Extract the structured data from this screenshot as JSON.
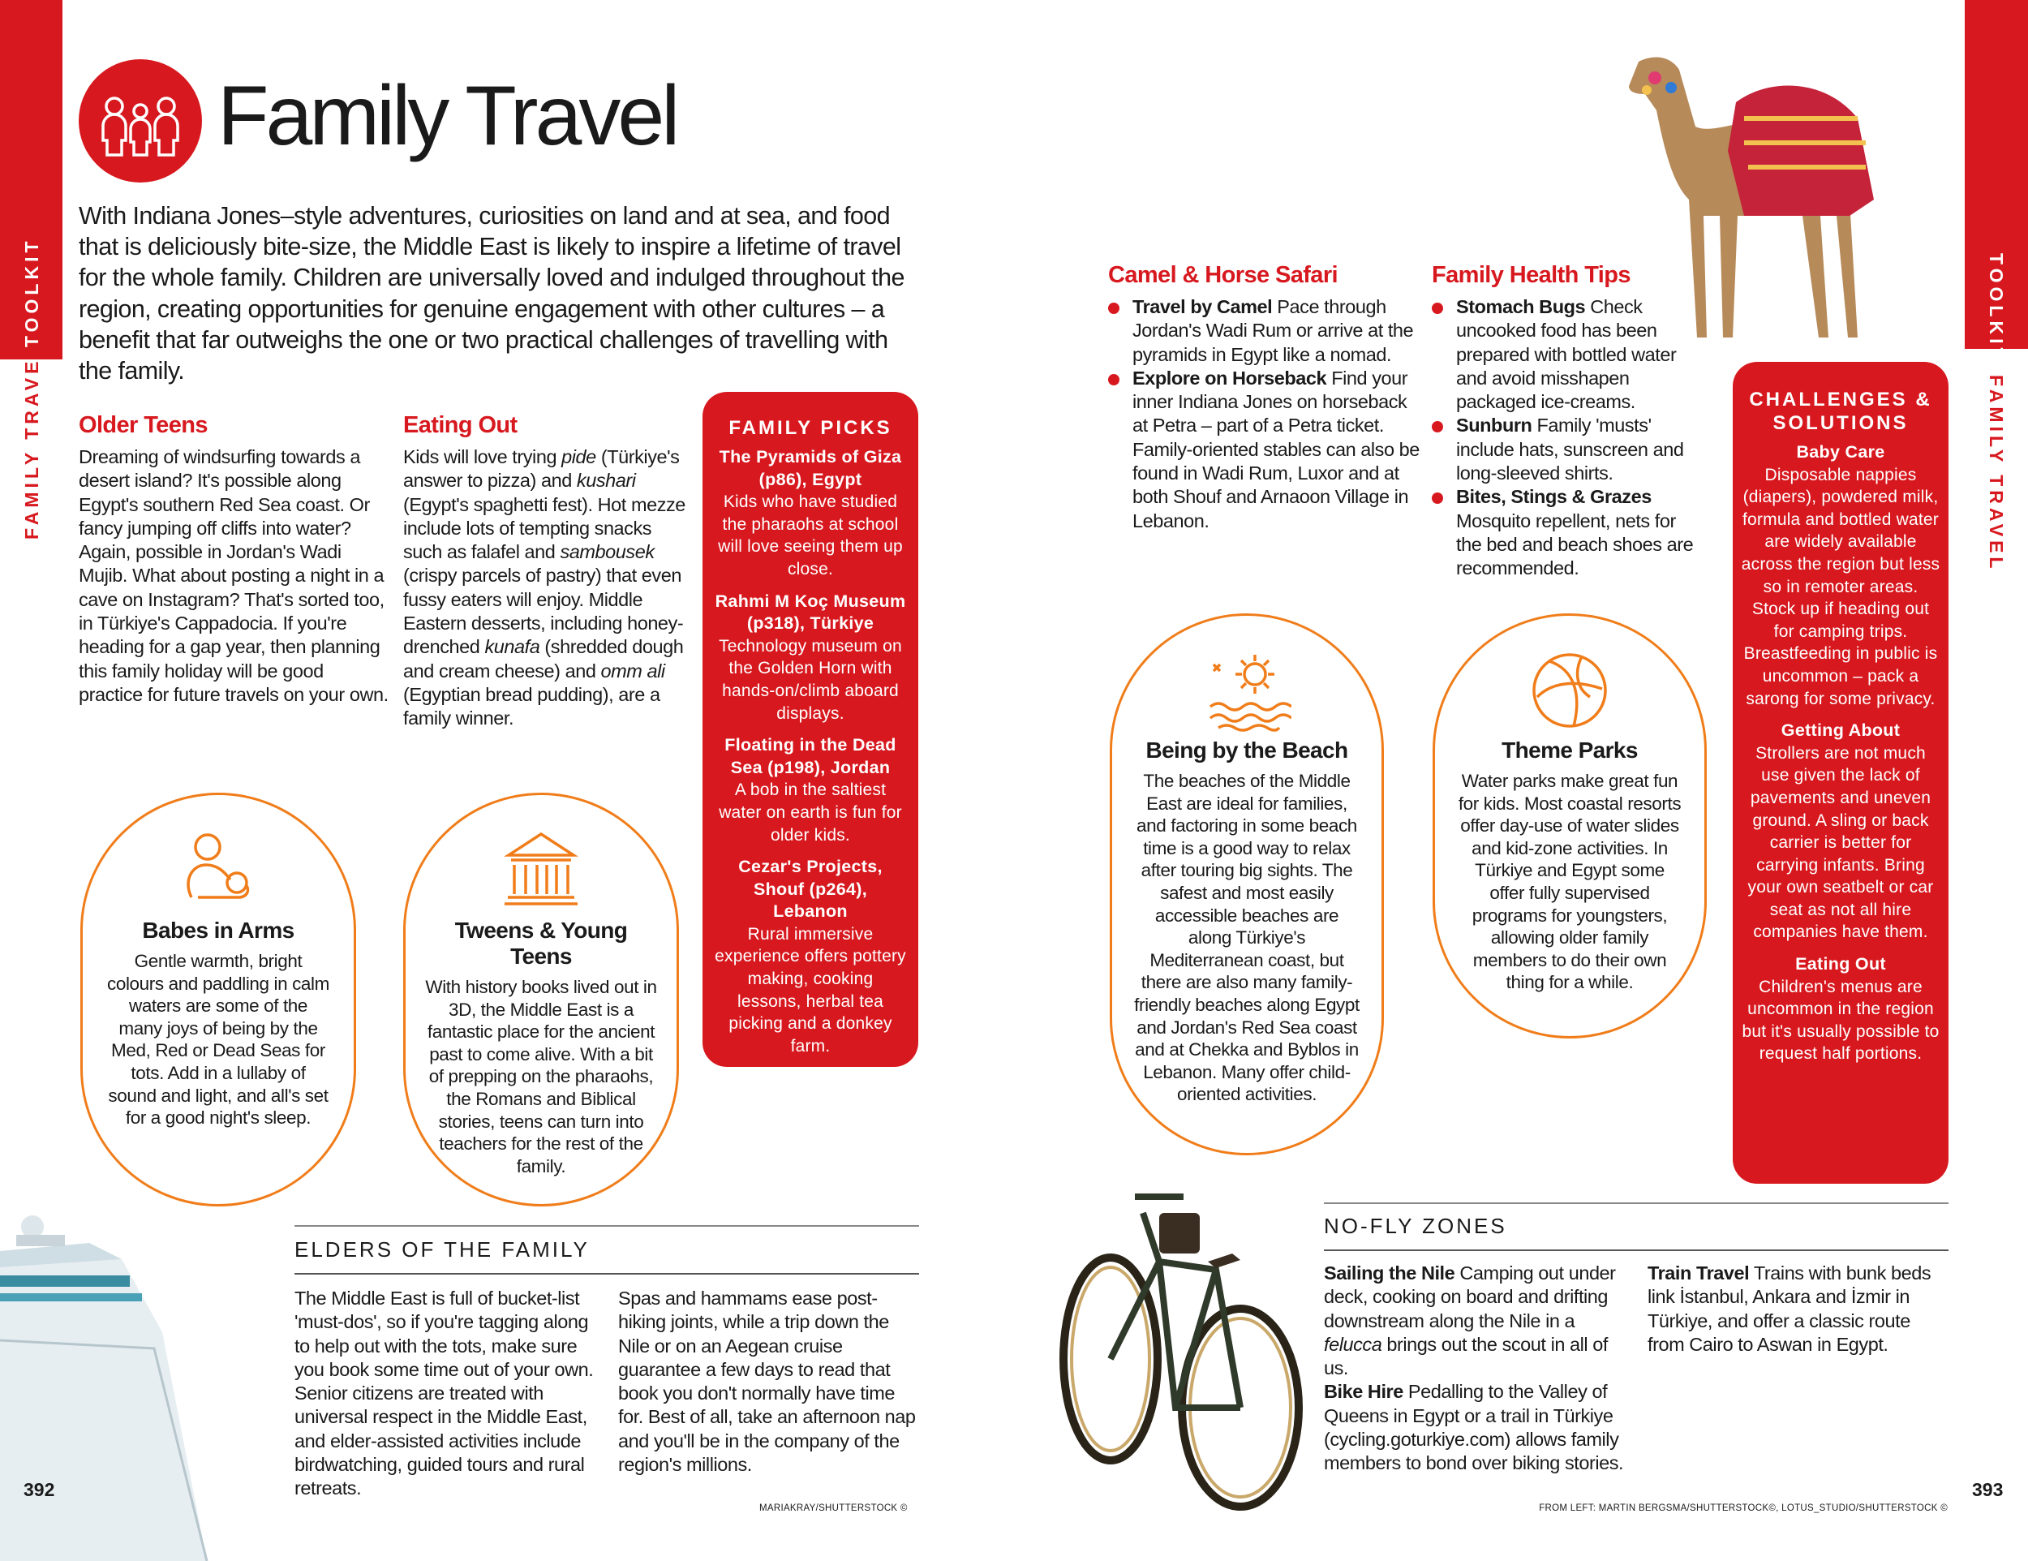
{
  "colors": {
    "brand_red": "#d7191f",
    "accent_orange": "#f07d1a"
  },
  "side_tabs": {
    "section": "TOOLKIT",
    "chapter": "FAMILY TRAVEL"
  },
  "header": {
    "icon": "family-icon",
    "title": "Family Travel"
  },
  "intro": "With Indiana Jones–style adventures, curiosities on land and at sea, and food that is deliciously bite-size, the Middle East is likely to inspire a lifetime of travel for the whole family. Children are universally loved and indulged throughout the region, creating opportunities for genuine engagement with other cultures – a benefit that far outweighs the one or two practical challenges of travelling with the family.",
  "older_teens": {
    "heading": "Older Teens",
    "text": "Dreaming of windsurfing towards a desert island? It's possible along Egypt's southern Red Sea coast. Or fancy jumping off cliffs into water? Again, possible in Jordan's Wadi Mujib. What about posting a night in a cave on Instagram? That's sorted too, in Türkiye's Cappadocia. If you're heading for a gap year, then planning this family holiday will be good practice for future travels on your own."
  },
  "eating_out": {
    "heading": "Eating Out",
    "segments": [
      "Kids will love trying ",
      "pide",
      " (Türkiye's answer to pizza) and ",
      "kushari",
      " (Egypt's spaghetti fest). Hot mezze include lots of tempting snacks such as falafel and ",
      "sambousek",
      " (crispy parcels of pastry) that even fussy eaters will enjoy. Middle Eastern desserts, including honey-drenched ",
      "kunafa",
      " (shredded dough and cream cheese) and ",
      "omm ali",
      " (Egyptian bread pudding), are a family winner."
    ]
  },
  "family_picks": {
    "heading": "FAMILY PICKS",
    "items": [
      {
        "title": "The Pyramids of Giza (p86), Egypt",
        "text": "Kids who have studied the pharaohs at school will love seeing them up close."
      },
      {
        "title": "Rahmi M Koç Museum (p318), Türkiye",
        "text": "Technology museum on the Golden Horn with hands-on/climb aboard displays."
      },
      {
        "title": "Floating in the Dead Sea (p198), Jordan",
        "text": "A bob in the saltiest water on earth is fun for older kids."
      },
      {
        "title": "Cezar's Projects, Shouf (p264), Lebanon",
        "text": "Rural immersive experience offers pottery making, cooking lessons, herbal tea picking and a donkey farm."
      }
    ]
  },
  "babes_in_arms": {
    "icon": "baby-icon",
    "heading": "Babes in Arms",
    "text": "Gentle warmth, bright colours and paddling in calm waters are some of the many joys of being by the Med, Red or Dead Seas for tots. Add in a lullaby of sound and light, and all's set for a good night's sleep."
  },
  "tweens": {
    "icon": "temple-icon",
    "heading": "Tweens & Young Teens",
    "text": "With history books lived out in 3D, the Middle East is a fantastic place for the ancient past to come alive. With a bit of prepping on the pharaohs, the Romans and Biblical stories, teens can turn into teachers for the rest of the family."
  },
  "elders": {
    "heading": "ELDERS OF THE FAMILY",
    "col1": "The Middle East is full of bucket-list 'must-dos', so if you're tagging along to help out with the tots, make sure you book some time out of your own. Senior citizens are treated with universal respect in the Middle East, and elder-assisted activities include birdwatching, guided tours and rural retreats.",
    "col2": "Spas and hammams ease post-hiking joints, while a trip down the Nile or on an Aegean cruise guarantee a few days to read that book you don't normally have time for. Best of all, take an afternoon nap and you'll be in the company of the region's millions."
  },
  "camel_safari": {
    "heading": "Camel & Horse Safari",
    "items": [
      {
        "lead": "Travel by Camel",
        "text": " Pace through Jordan's Wadi Rum or arrive at the pyramids in Egypt like a nomad."
      },
      {
        "lead": "Explore on Horseback",
        "text": " Find your inner Indiana Jones on horseback at Petra – part of a Petra ticket. Family-oriented stables can also be found in Wadi Rum, Luxor and at both Shouf and Arnaoon Village in Lebanon."
      }
    ]
  },
  "health_tips": {
    "heading": "Family Health Tips",
    "items": [
      {
        "lead": "Stomach Bugs",
        "text": " Check uncooked food has been prepared with bottled water and avoid misshapen packaged ice-creams."
      },
      {
        "lead": "Sunburn",
        "text": " Family 'musts' include hats, sunscreen and long-sleeved shirts."
      },
      {
        "lead": "Bites, Stings & Grazes",
        "text": " Mosquito repellent, nets for the bed and beach shoes are recommended."
      }
    ]
  },
  "beach": {
    "icon": "sun-waves-icon",
    "heading": "Being by the Beach",
    "text": "The beaches of the Middle East are ideal for families, and factoring in some beach time is a good way to relax after touring big sights. The safest and most easily accessible beaches are along Türkiye's Mediterranean coast, but there are also many family-friendly beaches along Egypt and Jordan's Red Sea coast and at Chekka and Byblos in Lebanon. Many offer child-oriented activities."
  },
  "theme_parks": {
    "icon": "beach-ball-icon",
    "heading": "Theme Parks",
    "text": "Water parks make great fun for kids. Most coastal resorts offer day-use of water slides and kid-zone activities. In Türkiye and Egypt some offer fully supervised programs for youngsters, allowing older family members to do their own thing for a while."
  },
  "challenges": {
    "heading": "CHALLENGES & SOLUTIONS",
    "items": [
      {
        "title": "Baby Care",
        "text": "Disposable nappies (diapers), powdered milk, formula and bottled water are widely available across the region but less so in remoter areas. Stock up if heading out for camping trips. Breastfeeding in public is uncommon – pack a sarong for some privacy."
      },
      {
        "title": "Getting About",
        "text": "Strollers are not much use given the lack of pavements and uneven ground. A sling or back carrier is better for carrying infants. Bring your own seatbelt or car seat as not all hire companies have them."
      },
      {
        "title": "Eating Out",
        "text": "Children's menus are uncommon in the region but it's usually possible to request half portions."
      }
    ]
  },
  "no_fly": {
    "heading": "NO-FLY ZONES",
    "sailing": {
      "lead": "Sailing the Nile",
      "pre": " Camping out under deck, cooking on board and drifting downstream along the Nile in a ",
      "ital": "felucca",
      "post": " brings out the scout in all of us."
    },
    "bike": {
      "lead": "Bike Hire",
      "text": " Pedalling to the Valley of Queens in Egypt or a trail in Türkiye (cycling.goturkiye.com) allows family members to bond over biking stories."
    },
    "train": {
      "lead": "Train Travel",
      "text": " Trains with bunk beds link İstanbul, Ankara and İzmir in Türkiye, and offer a classic route from Cairo to Aswan in Egypt."
    }
  },
  "footer": {
    "left_page": "392",
    "right_page": "393",
    "left_credit": "MARIAKRAY/SHUTTERSTOCK ©",
    "right_credit": "FROM LEFT: MARTIN BERGSMA/SHUTTERSTOCK©, LOTUS_STUDIO/SHUTTERSTOCK ©"
  },
  "images": {
    "ship": "cruise-ship-photo",
    "camel": "camel-photo",
    "bicycle": "bicycle-photo"
  }
}
